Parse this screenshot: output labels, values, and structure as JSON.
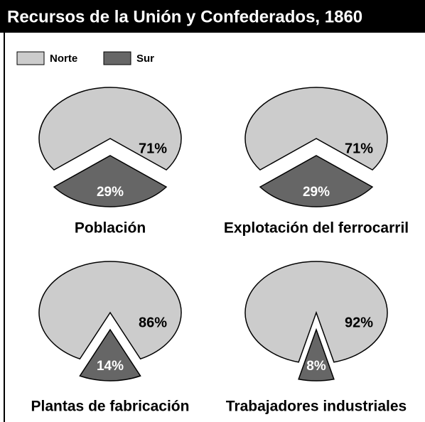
{
  "title": "Recursos de la Unión y Confederados, 1860",
  "chart_data": [
    {
      "type": "pie",
      "title": "Población",
      "categories": [
        "Norte",
        "Sur"
      ],
      "values": [
        71,
        29
      ],
      "value_labels": [
        "71%",
        "29%"
      ],
      "colors": [
        "#cccccc",
        "#666666"
      ]
    },
    {
      "type": "pie",
      "title": "Explotación del ferrocarril",
      "categories": [
        "Norte",
        "Sur"
      ],
      "values": [
        71,
        29
      ],
      "value_labels": [
        "71%",
        "29%"
      ],
      "colors": [
        "#cccccc",
        "#666666"
      ]
    },
    {
      "type": "pie",
      "title": "Plantas de fabricación",
      "categories": [
        "Norte",
        "Sur"
      ],
      "values": [
        86,
        14
      ],
      "value_labels": [
        "86%",
        "14%"
      ],
      "colors": [
        "#cccccc",
        "#666666"
      ]
    },
    {
      "type": "pie",
      "title": "Trabajadores industriales",
      "categories": [
        "Norte",
        "Sur"
      ],
      "values": [
        92,
        8
      ],
      "value_labels": [
        "92%",
        "8%"
      ],
      "colors": [
        "#cccccc",
        "#666666"
      ]
    }
  ]
}
